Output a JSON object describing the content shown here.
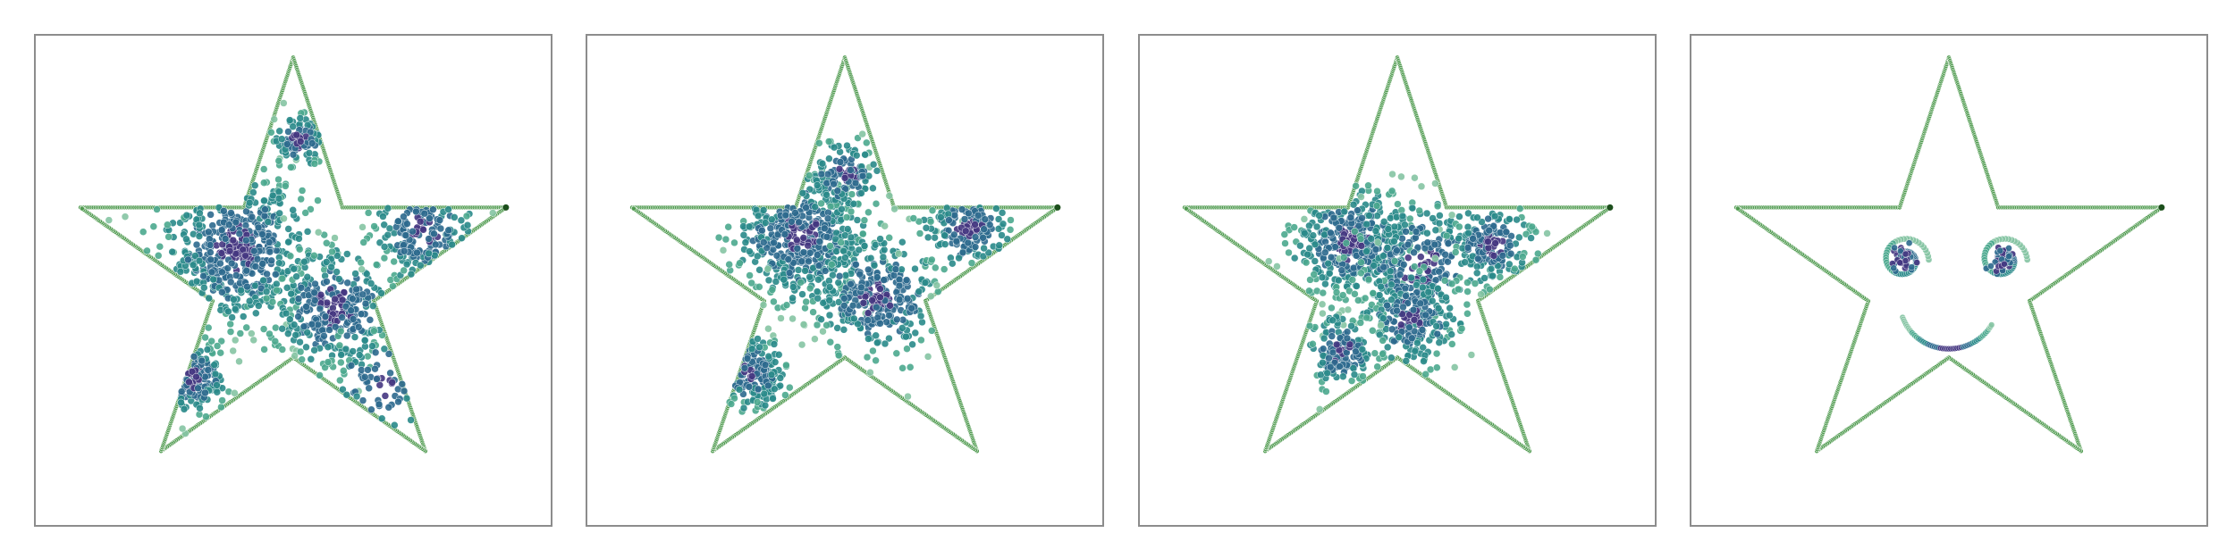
{
  "chart_data": [
    {
      "type": "scatter",
      "xlim": [
        -1.15,
        1.15
      ],
      "ylim": [
        -1.15,
        1.1
      ],
      "grid": false,
      "outline_color": "#4e9a4e",
      "fill_colormap": [
        "#453781",
        "#2d6a8e",
        "#2a8a8a",
        "#4ca98f",
        "#86c5a4"
      ],
      "outline": [
        [
          -0.95,
          0.31
        ],
        [
          -0.22,
          0.31
        ],
        [
          0,
          1.0
        ],
        [
          0.22,
          0.31
        ],
        [
          0.95,
          0.31
        ],
        [
          0.36,
          -0.12
        ],
        [
          0.59,
          -0.81
        ],
        [
          0,
          -0.38
        ],
        [
          -0.59,
          -0.81
        ],
        [
          -0.36,
          -0.12
        ],
        [
          -0.95,
          0.31
        ]
      ],
      "clusters": [
        {
          "x": -0.25,
          "y": 0.12,
          "sd": 0.17,
          "n": 520
        },
        {
          "x": 0.18,
          "y": -0.15,
          "sd": 0.14,
          "n": 320
        },
        {
          "x": 0.58,
          "y": 0.2,
          "sd": 0.11,
          "n": 160
        },
        {
          "x": -0.45,
          "y": -0.47,
          "sd": 0.08,
          "n": 150
        },
        {
          "x": 0.03,
          "y": 0.62,
          "sd": 0.06,
          "n": 90
        },
        {
          "x": 0.4,
          "y": -0.5,
          "sd": 0.12,
          "n": 60
        }
      ]
    },
    {
      "type": "scatter",
      "xlim": [
        -1.15,
        1.15
      ],
      "ylim": [
        -1.15,
        1.1
      ],
      "grid": false,
      "outline_color": "#4e9a4e",
      "fill_colormap": [
        "#453781",
        "#2d6a8e",
        "#2a8a8a",
        "#4ca98f",
        "#86c5a4"
      ],
      "outline": [
        [
          -0.95,
          0.31
        ],
        [
          -0.22,
          0.31
        ],
        [
          0,
          1.0
        ],
        [
          0.22,
          0.31
        ],
        [
          0.95,
          0.31
        ],
        [
          0.36,
          -0.12
        ],
        [
          0.59,
          -0.81
        ],
        [
          0,
          -0.38
        ],
        [
          -0.59,
          -0.81
        ],
        [
          -0.36,
          -0.12
        ],
        [
          -0.95,
          0.31
        ]
      ],
      "clusters": [
        {
          "x": -0.2,
          "y": 0.18,
          "sd": 0.15,
          "n": 480
        },
        {
          "x": 0.15,
          "y": -0.1,
          "sd": 0.14,
          "n": 320
        },
        {
          "x": 0.55,
          "y": 0.22,
          "sd": 0.1,
          "n": 150
        },
        {
          "x": -0.42,
          "y": -0.45,
          "sd": 0.08,
          "n": 170
        },
        {
          "x": 0.0,
          "y": 0.45,
          "sd": 0.08,
          "n": 120
        }
      ]
    },
    {
      "type": "scatter",
      "xlim": [
        -1.15,
        1.15
      ],
      "ylim": [
        -1.15,
        1.1
      ],
      "grid": false,
      "outline_color": "#4e9a4e",
      "fill_colormap": [
        "#453781",
        "#2d6a8e",
        "#2a8a8a",
        "#4ca98f",
        "#86c5a4"
      ],
      "outline": [
        [
          -0.95,
          0.31
        ],
        [
          -0.22,
          0.31
        ],
        [
          0,
          1.0
        ],
        [
          0.22,
          0.31
        ],
        [
          0.95,
          0.31
        ],
        [
          0.36,
          -0.12
        ],
        [
          0.59,
          -0.81
        ],
        [
          0,
          -0.38
        ],
        [
          -0.59,
          -0.81
        ],
        [
          -0.36,
          -0.12
        ],
        [
          -0.95,
          0.31
        ]
      ],
      "clusters": [
        {
          "x": -0.2,
          "y": 0.15,
          "sd": 0.13,
          "n": 420
        },
        {
          "x": 0.1,
          "y": 0.05,
          "sd": 0.15,
          "n": 260
        },
        {
          "x": 0.42,
          "y": 0.14,
          "sd": 0.09,
          "n": 180
        },
        {
          "x": 0.06,
          "y": -0.2,
          "sd": 0.11,
          "n": 220
        },
        {
          "x": -0.25,
          "y": -0.35,
          "sd": 0.08,
          "n": 150
        }
      ]
    },
    {
      "type": "scatter",
      "xlim": [
        -1.15,
        1.15
      ],
      "ylim": [
        -1.15,
        1.1
      ],
      "grid": false,
      "outline_color": "#4e9a4e",
      "fill_colormap": [
        "#453781",
        "#2d6a8e",
        "#2a8a8a",
        "#4ca98f",
        "#86c5a4"
      ],
      "outline": [
        [
          -0.95,
          0.31
        ],
        [
          -0.22,
          0.31
        ],
        [
          0,
          1.0
        ],
        [
          0.22,
          0.31
        ],
        [
          0.95,
          0.31
        ],
        [
          0.36,
          -0.12
        ],
        [
          0.59,
          -0.81
        ],
        [
          0,
          -0.38
        ],
        [
          -0.59,
          -0.81
        ],
        [
          -0.36,
          -0.12
        ],
        [
          -0.95,
          0.31
        ]
      ],
      "face": {
        "eyes": [
          {
            "x": -0.2,
            "y": 0.07,
            "r": 0.11
          },
          {
            "x": 0.24,
            "y": 0.07,
            "r": 0.11
          }
        ],
        "smile": {
          "x": 0.0,
          "y": -0.12,
          "r": 0.22,
          "start_deg": 200,
          "end_deg": 330
        }
      }
    }
  ]
}
